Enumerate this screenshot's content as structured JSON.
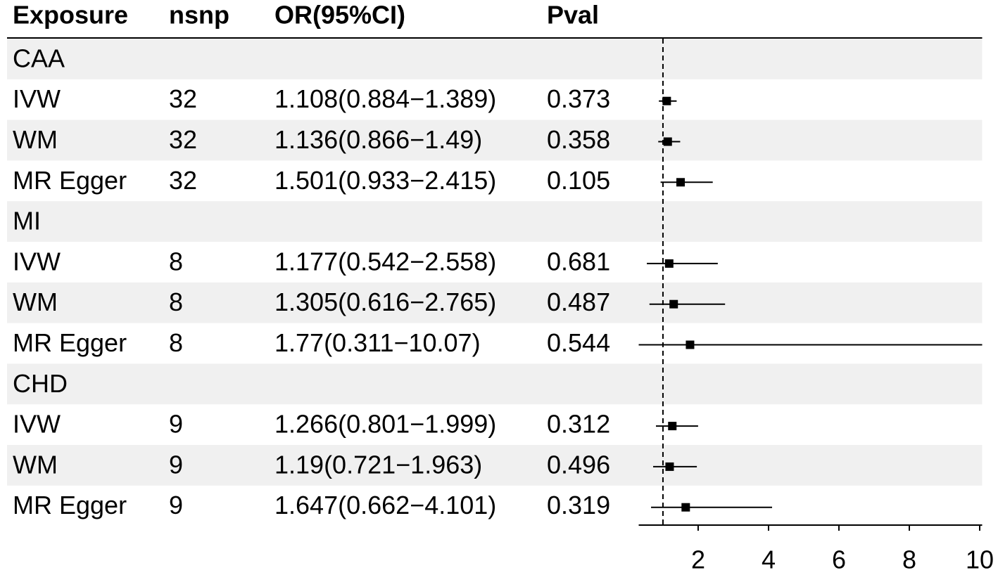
{
  "chart_data": {
    "type": "forest",
    "headers": [
      "Exposure",
      "nsnp",
      "OR(95%CI)",
      "Pval"
    ],
    "rows": [
      {
        "label": "CAA"
      },
      {
        "label": "IVW",
        "nsnp": 32,
        "or_ci": "1.108(0.884−1.389)",
        "pval": 0.373,
        "or": 1.108,
        "lower": 0.884,
        "upper": 1.389
      },
      {
        "label": "WM",
        "nsnp": 32,
        "or_ci": "1.136(0.866−1.49)",
        "pval": 0.358,
        "or": 1.136,
        "lower": 0.866,
        "upper": 1.49
      },
      {
        "label": "MR Egger",
        "nsnp": 32,
        "or_ci": "1.501(0.933−2.415)",
        "pval": 0.105,
        "or": 1.501,
        "lower": 0.933,
        "upper": 2.415
      },
      {
        "label": "MI"
      },
      {
        "label": "IVW",
        "nsnp": 8,
        "or_ci": "1.177(0.542−2.558)",
        "pval": 0.681,
        "or": 1.177,
        "lower": 0.542,
        "upper": 2.558
      },
      {
        "label": "WM",
        "nsnp": 8,
        "or_ci": "1.305(0.616−2.765)",
        "pval": 0.487,
        "or": 1.305,
        "lower": 0.616,
        "upper": 2.765
      },
      {
        "label": "MR Egger",
        "nsnp": 8,
        "or_ci": "1.77(0.311−10.07)",
        "pval": 0.544,
        "or": 1.77,
        "lower": 0.311,
        "upper": 10.07
      },
      {
        "label": "CHD"
      },
      {
        "label": "IVW",
        "nsnp": 9,
        "or_ci": "1.266(0.801−1.999)",
        "pval": 0.312,
        "or": 1.266,
        "lower": 0.801,
        "upper": 1.999
      },
      {
        "label": "WM",
        "nsnp": 9,
        "or_ci": "1.19(0.721−1.963)",
        "pval": 0.496,
        "or": 1.19,
        "lower": 0.721,
        "upper": 1.963
      },
      {
        "label": "MR Egger",
        "nsnp": 9,
        "or_ci": "1.647(0.662−4.101)",
        "pval": 0.319,
        "or": 1.647,
        "lower": 0.662,
        "upper": 4.101
      }
    ],
    "xlim": [
      0.311,
      10.07
    ],
    "xticks": [
      2,
      4,
      6,
      8,
      10
    ],
    "ref_line": 1,
    "stripe_color": "#f0f0f0",
    "color": "#000000"
  }
}
